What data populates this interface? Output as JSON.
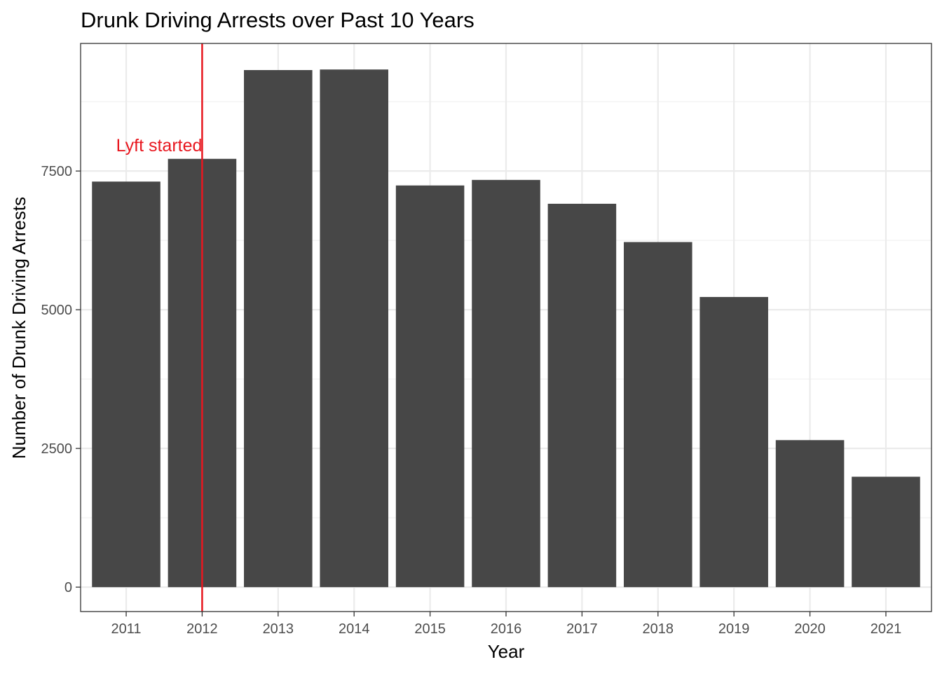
{
  "chart_data": {
    "type": "bar",
    "title": "Drunk Driving Arrests over Past 10 Years",
    "xlabel": "Year",
    "ylabel": "Number of Drunk Driving Arrests",
    "categories": [
      "2011",
      "2012",
      "2013",
      "2014",
      "2015",
      "2016",
      "2017",
      "2018",
      "2019",
      "2020",
      "2021"
    ],
    "values": [
      7310,
      7720,
      9320,
      9330,
      7240,
      7340,
      6910,
      6220,
      5230,
      2650,
      1990
    ],
    "ylim": [
      -440,
      9800
    ],
    "y_ticks": [
      0,
      2500,
      5000,
      7500
    ],
    "y_tick_labels": [
      "0",
      "2500",
      "5000",
      "7500"
    ],
    "grid": true,
    "bar_color": "#474747",
    "annotation": {
      "type": "vline",
      "x": "2012",
      "label": "Lyft started",
      "color": "#e8171f"
    }
  }
}
